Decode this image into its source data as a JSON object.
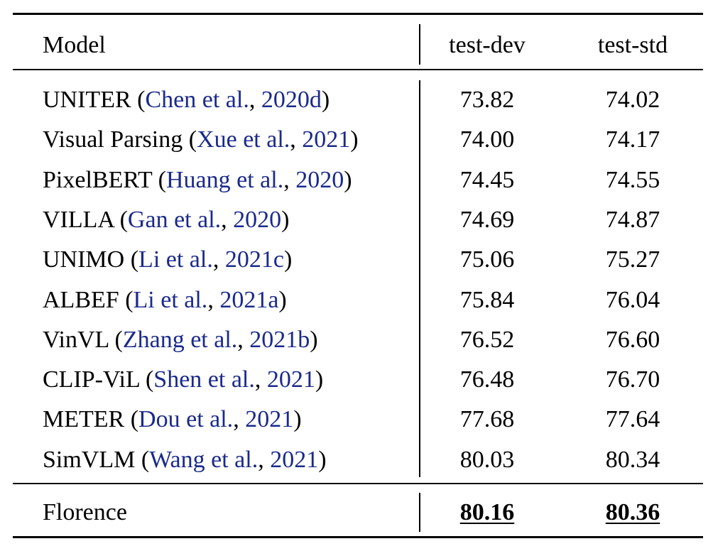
{
  "table": {
    "headers": {
      "model": "Model",
      "test_dev": "test-dev",
      "test_std": "test-std"
    },
    "rows": [
      {
        "model": "UNITER",
        "cite_authors": "Chen et al.",
        "cite_year": "2020d",
        "test_dev": "73.82",
        "test_std": "74.02"
      },
      {
        "model": "Visual Parsing",
        "cite_authors": "Xue et al.",
        "cite_year": "2021",
        "test_dev": "74.00",
        "test_std": "74.17"
      },
      {
        "model": "PixelBERT",
        "cite_authors": "Huang et al.",
        "cite_year": "2020",
        "test_dev": "74.45",
        "test_std": "74.55"
      },
      {
        "model": "VILLA",
        "cite_authors": "Gan et al.",
        "cite_year": "2020",
        "test_dev": "74.69",
        "test_std": "74.87"
      },
      {
        "model": "UNIMO",
        "cite_authors": "Li et al.",
        "cite_year": "2021c",
        "test_dev": "75.06",
        "test_std": "75.27"
      },
      {
        "model": "ALBEF",
        "cite_authors": "Li et al.",
        "cite_year": "2021a",
        "test_dev": "75.84",
        "test_std": "76.04"
      },
      {
        "model": "VinVL",
        "cite_authors": "Zhang et al.",
        "cite_year": "2021b",
        "test_dev": "76.52",
        "test_std": "76.60"
      },
      {
        "model": "CLIP-ViL",
        "cite_authors": "Shen et al.",
        "cite_year": "2021",
        "test_dev": "76.48",
        "test_std": "76.70"
      },
      {
        "model": "METER",
        "cite_authors": "Dou et al.",
        "cite_year": "2021",
        "test_dev": "77.68",
        "test_std": "77.64"
      },
      {
        "model": "SimVLM",
        "cite_authors": "Wang et al.",
        "cite_year": "2021",
        "test_dev": "80.03",
        "test_std": "80.34"
      }
    ],
    "ours": {
      "model": "Florence",
      "test_dev": "80.16",
      "test_std": "80.36"
    }
  },
  "colors": {
    "citation": "#1a2a8c",
    "text": "#000000"
  }
}
